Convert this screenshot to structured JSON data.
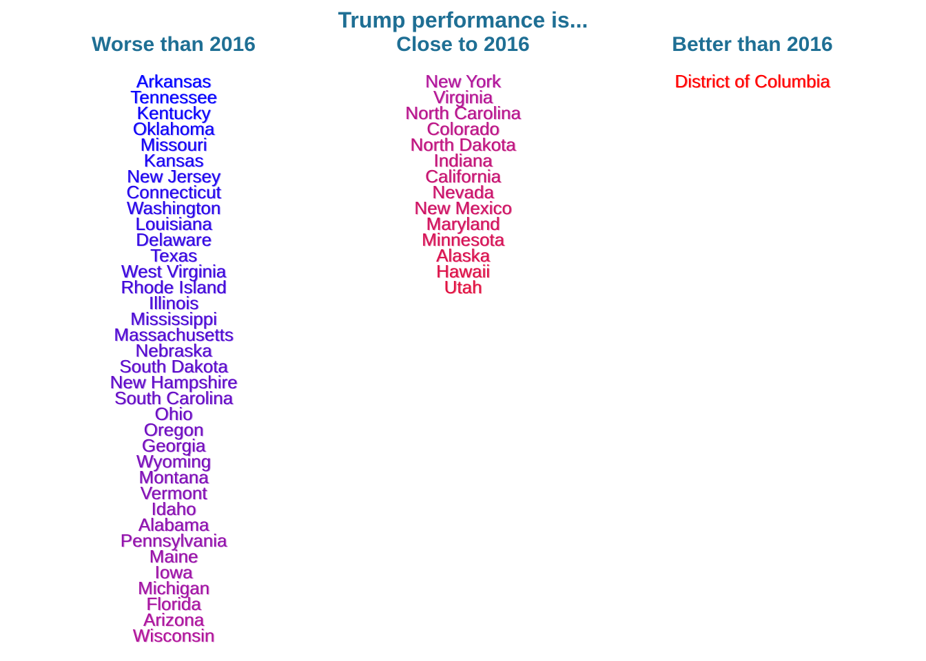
{
  "chart_data": {
    "type": "table",
    "title": "Trump performance is...",
    "columns": [
      {
        "header": "Worse than 2016",
        "color_start": "#0000ff",
        "color_end": "#b0149a",
        "items": [
          "Arkansas",
          "Tennessee",
          "Kentucky",
          "Oklahoma",
          "Missouri",
          "Kansas",
          "New Jersey",
          "Connecticut",
          "Washington",
          "Louisiana",
          "Delaware",
          "Texas",
          "West Virginia",
          "Rhode Island",
          "Illinois",
          "Mississippi",
          "Massachusetts",
          "Nebraska",
          "South Dakota",
          "New Hampshire",
          "South Carolina",
          "Ohio",
          "Oregon",
          "Georgia",
          "Wyoming",
          "Montana",
          "Vermont",
          "Idaho",
          "Alabama",
          "Pennsylvania",
          "Maine",
          "Iowa",
          "Michigan",
          "Florida",
          "Arizona",
          "Wisconsin"
        ]
      },
      {
        "header": "Close to 2016",
        "color_start": "#b0149a",
        "color_end": "#e01040",
        "items": [
          "New York",
          "Virginia",
          "North Carolina",
          "Colorado",
          "North Dakota",
          "Indiana",
          "California",
          "Nevada",
          "New Mexico",
          "Maryland",
          "Minnesota",
          "Alaska",
          "Hawaii",
          "Utah"
        ]
      },
      {
        "header": "Better than 2016",
        "color_start": "#ff0000",
        "color_end": "#ff0000",
        "items": [
          "District of Columbia"
        ]
      }
    ]
  }
}
